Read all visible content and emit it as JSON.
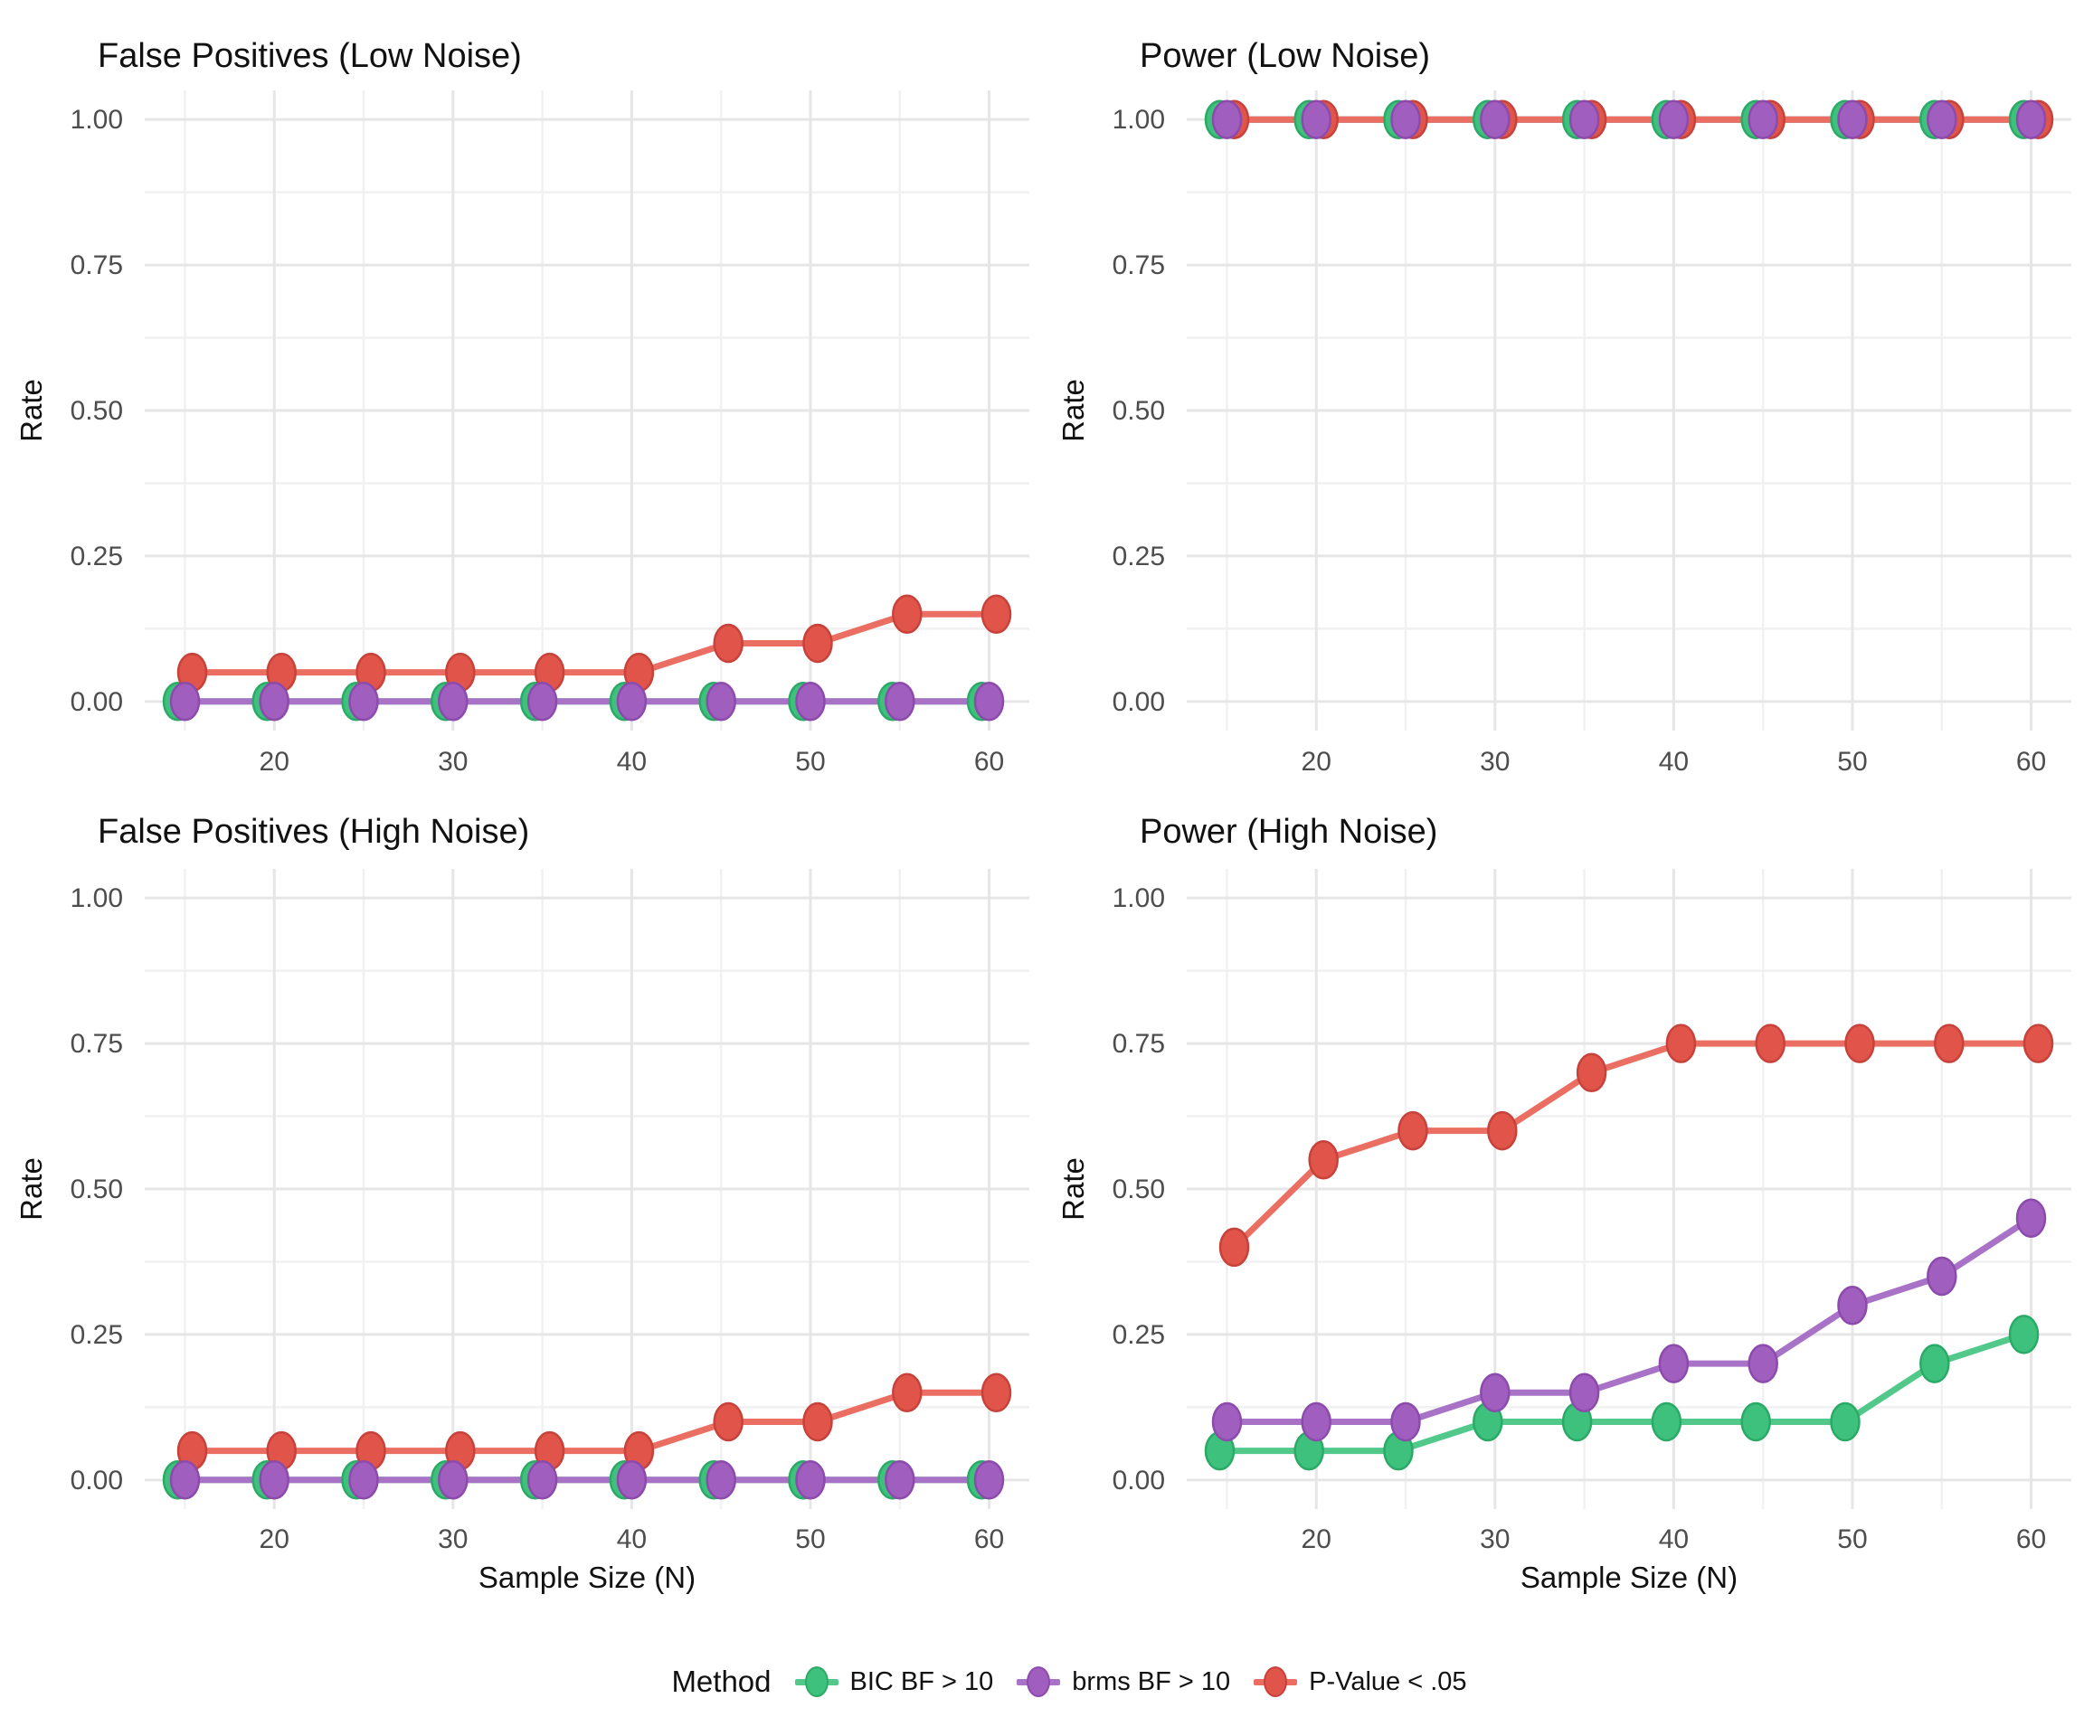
{
  "colors": {
    "bic": {
      "point": "#3EC17C",
      "stroke": "#2BAA67",
      "line": "#52C98A"
    },
    "brms": {
      "point": "#A05FBE",
      "stroke": "#8C4BAC",
      "line": "#A873C6"
    },
    "pval": {
      "point": "#E0544A",
      "stroke": "#C7423B",
      "line": "#EB6E62"
    },
    "grid_major": "#E6E6E6",
    "grid_minor": "#F1F1F1",
    "tick_text": "#4D4D4D",
    "title_text": "#111111",
    "background": "#FFFFFF"
  },
  "chart_data": [
    {
      "type": "line",
      "title": "False Positives (Low Noise)",
      "xlabel": "",
      "ylabel": "Rate",
      "x": [
        15,
        20,
        25,
        30,
        35,
        40,
        45,
        50,
        55,
        60
      ],
      "series": [
        {
          "name": "BIC BF > 10",
          "color_key": "bic",
          "values": [
            0,
            0,
            0,
            0,
            0,
            0,
            0,
            0,
            0,
            0
          ]
        },
        {
          "name": "brms BF > 10",
          "color_key": "brms",
          "values": [
            0,
            0,
            0,
            0,
            0,
            0,
            0,
            0,
            0,
            0
          ]
        },
        {
          "name": "P-Value < .05",
          "color_key": "pval",
          "values": [
            0.05,
            0.05,
            0.05,
            0.05,
            0.05,
            0.05,
            0.1,
            0.1,
            0.15,
            0.15
          ]
        }
      ],
      "xlim": [
        12.75,
        62.25
      ],
      "ylim": [
        0,
        1
      ],
      "xticks": [
        20,
        30,
        40,
        50,
        60
      ],
      "xtick_labels": [
        "20",
        "30",
        "40",
        "50",
        "60"
      ],
      "xticks_minor": [
        15,
        25,
        35,
        45,
        55
      ],
      "yticks": [
        0,
        0.25,
        0.5,
        0.75,
        1
      ],
      "ytick_labels": [
        "0.00",
        "0.25",
        "0.50",
        "0.75",
        "1.00"
      ],
      "yticks_minor": [
        0.125,
        0.375,
        0.625,
        0.875
      ],
      "grid": true,
      "legend_position": "bottom"
    },
    {
      "type": "line",
      "title": "Power (Low Noise)",
      "xlabel": "",
      "ylabel": "Rate",
      "x": [
        15,
        20,
        25,
        30,
        35,
        40,
        45,
        50,
        55,
        60
      ],
      "series": [
        {
          "name": "BIC BF > 10",
          "color_key": "bic",
          "values": [
            1,
            1,
            1,
            1,
            1,
            1,
            1,
            1,
            1,
            1
          ]
        },
        {
          "name": "brms BF > 10",
          "color_key": "brms",
          "values": [
            1,
            1,
            1,
            1,
            1,
            1,
            1,
            1,
            1,
            1
          ]
        },
        {
          "name": "P-Value < .05",
          "color_key": "pval",
          "values": [
            1,
            1,
            1,
            1,
            1,
            1,
            1,
            1,
            1,
            1
          ]
        }
      ],
      "xlim": [
        12.75,
        62.25
      ],
      "ylim": [
        0,
        1
      ],
      "xticks": [
        20,
        30,
        40,
        50,
        60
      ],
      "xtick_labels": [
        "20",
        "30",
        "40",
        "50",
        "60"
      ],
      "xticks_minor": [
        15,
        25,
        35,
        45,
        55
      ],
      "yticks": [
        0,
        0.25,
        0.5,
        0.75,
        1
      ],
      "ytick_labels": [
        "0.00",
        "0.25",
        "0.50",
        "0.75",
        "1.00"
      ],
      "yticks_minor": [
        0.125,
        0.375,
        0.625,
        0.875
      ],
      "grid": true,
      "legend_position": "bottom"
    },
    {
      "type": "line",
      "title": "False Positives (High Noise)",
      "xlabel": "Sample Size (N)",
      "ylabel": "Rate",
      "x": [
        15,
        20,
        25,
        30,
        35,
        40,
        45,
        50,
        55,
        60
      ],
      "series": [
        {
          "name": "BIC BF > 10",
          "color_key": "bic",
          "values": [
            0,
            0,
            0,
            0,
            0,
            0,
            0,
            0,
            0,
            0
          ]
        },
        {
          "name": "brms BF > 10",
          "color_key": "brms",
          "values": [
            0,
            0,
            0,
            0,
            0,
            0,
            0,
            0,
            0,
            0
          ]
        },
        {
          "name": "P-Value < .05",
          "color_key": "pval",
          "values": [
            0.05,
            0.05,
            0.05,
            0.05,
            0.05,
            0.05,
            0.1,
            0.1,
            0.15,
            0.15
          ]
        }
      ],
      "xlim": [
        12.75,
        62.25
      ],
      "ylim": [
        0,
        1
      ],
      "xticks": [
        20,
        30,
        40,
        50,
        60
      ],
      "xtick_labels": [
        "20",
        "30",
        "40",
        "50",
        "60"
      ],
      "xticks_minor": [
        15,
        25,
        35,
        45,
        55
      ],
      "yticks": [
        0,
        0.25,
        0.5,
        0.75,
        1
      ],
      "ytick_labels": [
        "0.00",
        "0.25",
        "0.50",
        "0.75",
        "1.00"
      ],
      "yticks_minor": [
        0.125,
        0.375,
        0.625,
        0.875
      ],
      "grid": true,
      "legend_position": "bottom"
    },
    {
      "type": "line",
      "title": "Power (High Noise)",
      "xlabel": "Sample Size (N)",
      "ylabel": "Rate",
      "x": [
        15,
        20,
        25,
        30,
        35,
        40,
        45,
        50,
        55,
        60
      ],
      "series": [
        {
          "name": "BIC BF > 10",
          "color_key": "bic",
          "values": [
            0.05,
            0.05,
            0.05,
            0.1,
            0.1,
            0.1,
            0.1,
            0.1,
            0.2,
            0.25
          ]
        },
        {
          "name": "brms BF > 10",
          "color_key": "brms",
          "values": [
            0.1,
            0.1,
            0.1,
            0.15,
            0.15,
            0.2,
            0.2,
            0.3,
            0.35,
            0.45
          ]
        },
        {
          "name": "P-Value < .05",
          "color_key": "pval",
          "values": [
            0.4,
            0.55,
            0.6,
            0.6,
            0.7,
            0.75,
            0.75,
            0.75,
            0.75,
            0.75
          ]
        }
      ],
      "xlim": [
        12.75,
        62.25
      ],
      "ylim": [
        0,
        1
      ],
      "xticks": [
        20,
        30,
        40,
        50,
        60
      ],
      "xtick_labels": [
        "20",
        "30",
        "40",
        "50",
        "60"
      ],
      "xticks_minor": [
        15,
        25,
        35,
        45,
        55
      ],
      "yticks": [
        0,
        0.25,
        0.5,
        0.75,
        1
      ],
      "ytick_labels": [
        "0.00",
        "0.25",
        "0.50",
        "0.75",
        "1.00"
      ],
      "yticks_minor": [
        0.125,
        0.375,
        0.625,
        0.875
      ],
      "grid": true,
      "legend_position": "bottom"
    }
  ],
  "legend": {
    "title": "Method",
    "items": [
      {
        "label": "BIC BF > 10",
        "color_key": "bic"
      },
      {
        "label": "brms BF > 10",
        "color_key": "brms"
      },
      {
        "label": "P-Value < .05",
        "color_key": "pval"
      }
    ]
  }
}
